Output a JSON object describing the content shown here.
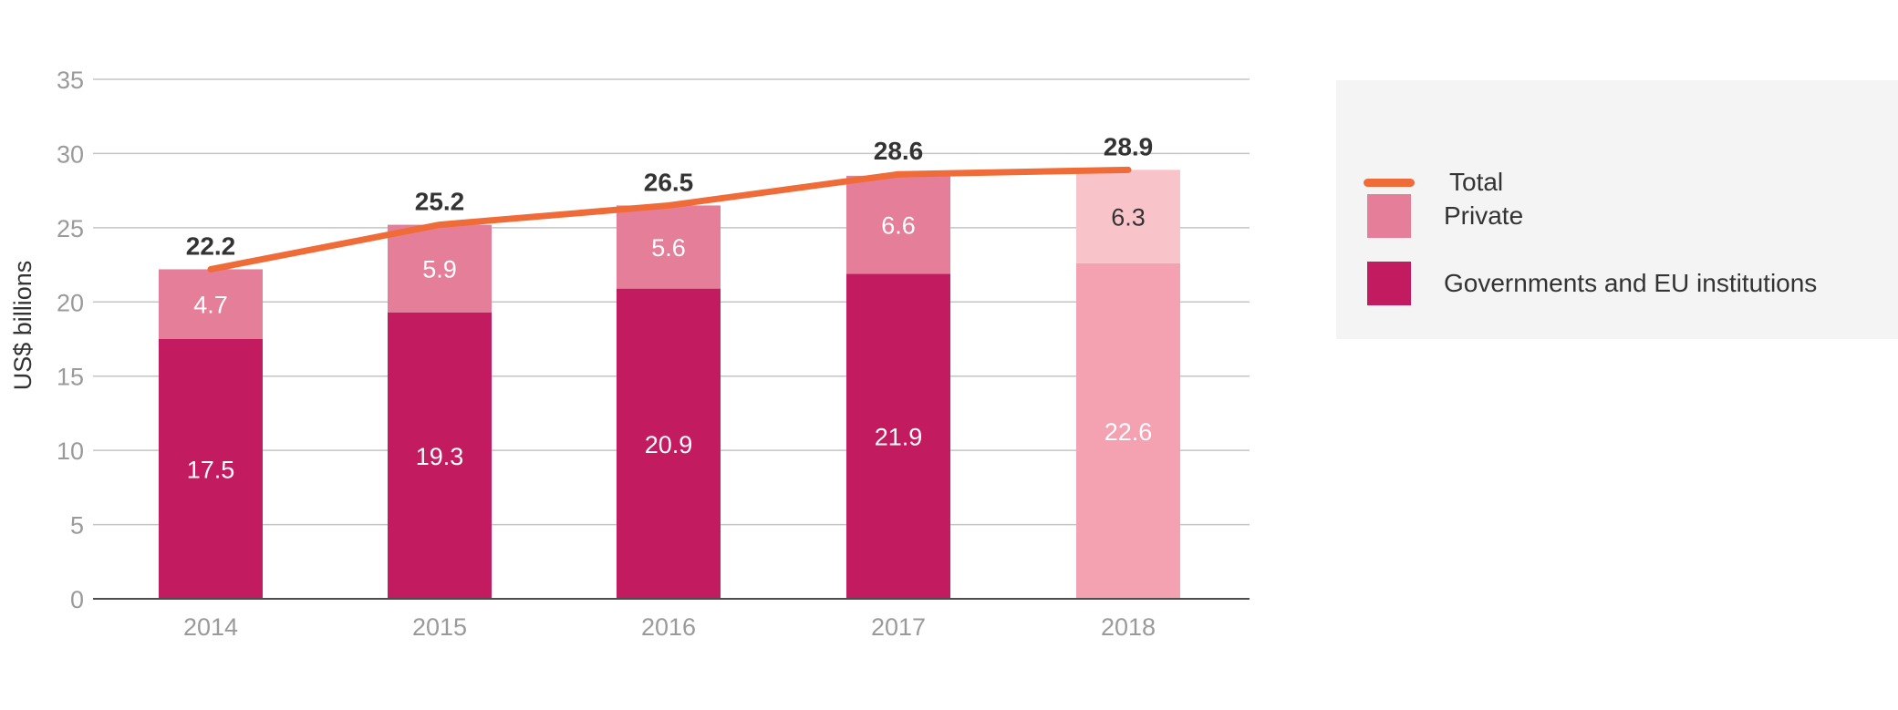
{
  "chart_data": {
    "type": "bar",
    "stacked": true,
    "categories": [
      "2014",
      "2015",
      "2016",
      "2017",
      "2018"
    ],
    "ylabel": "US$ billions",
    "xlabel": "",
    "ylim": [
      0,
      35
    ],
    "yticks": [
      0,
      5,
      10,
      15,
      20,
      25,
      30,
      35
    ],
    "grid": true,
    "legend_position": "right",
    "series": [
      {
        "name": "Governments and EU institutions",
        "kind": "bar",
        "values": [
          17.5,
          19.3,
          20.9,
          21.9,
          22.6
        ],
        "color": "#c21b60",
        "last_color": "#f4a1b1"
      },
      {
        "name": "Private",
        "kind": "bar",
        "values": [
          4.7,
          5.9,
          5.6,
          6.6,
          6.3
        ],
        "color": "#e57f99",
        "last_color": "#f8c4c9"
      },
      {
        "name": "Total",
        "kind": "line",
        "values": [
          22.2,
          25.2,
          26.5,
          28.6,
          28.9
        ],
        "color": "#ef6c38"
      }
    ],
    "value_labels": {
      "segments": [
        "17.5",
        "19.3",
        "20.9",
        "21.9",
        "22.6",
        "4.7",
        "5.9",
        "5.6",
        "6.6",
        "6.3"
      ],
      "totals": [
        "22.2",
        "25.2",
        "26.5",
        "28.6",
        "28.9"
      ]
    }
  },
  "legend": [
    {
      "label": "Total",
      "swatch": "line",
      "color": "#ef6c38"
    },
    {
      "label": "Private",
      "swatch": "box",
      "color": "#e57f99"
    },
    {
      "label": "Governments and EU institutions",
      "swatch": "box",
      "color": "#c21b60"
    }
  ]
}
